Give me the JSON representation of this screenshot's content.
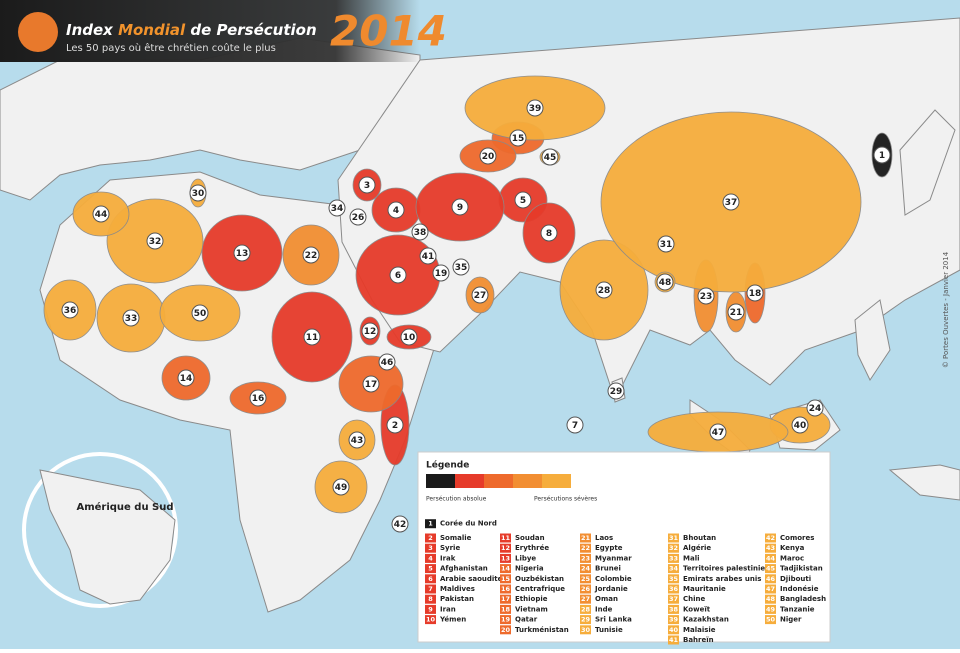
{
  "header": {
    "title": [
      "Index ",
      "Mondial",
      " de Persécution"
    ],
    "subtitle": "Les 50 pays où être chrétien coûte le plus",
    "year": "2014"
  },
  "credit": "© Portes Ouvertes - Janvier 2014",
  "inset": {
    "label": "Amérique du Sud"
  },
  "legend": {
    "title": "Légende",
    "colors": [
      "#1a1a1a",
      "#e63b2a",
      "#ee6a2c",
      "#f28e32",
      "#f6ad3c"
    ],
    "labels": [
      "Persécution absolue",
      "Persécutions sévères"
    ]
  },
  "countries": [
    {
      "rank": 1,
      "name": "Corée du Nord",
      "color": "#1a1a1a"
    },
    {
      "rank": 2,
      "name": "Somalie",
      "color": "#e63b2a"
    },
    {
      "rank": 3,
      "name": "Syrie",
      "color": "#e63b2a"
    },
    {
      "rank": 4,
      "name": "Irak",
      "color": "#e63b2a"
    },
    {
      "rank": 5,
      "name": "Afghanistan",
      "color": "#e63b2a"
    },
    {
      "rank": 6,
      "name": "Arabie saoudite",
      "color": "#e63b2a"
    },
    {
      "rank": 7,
      "name": "Maldives",
      "color": "#e63b2a"
    },
    {
      "rank": 8,
      "name": "Pakistan",
      "color": "#e63b2a"
    },
    {
      "rank": 9,
      "name": "Iran",
      "color": "#e63b2a"
    },
    {
      "rank": 10,
      "name": "Yémen",
      "color": "#e63b2a"
    },
    {
      "rank": 11,
      "name": "Soudan",
      "color": "#e63b2a"
    },
    {
      "rank": 12,
      "name": "Erythrée",
      "color": "#e63b2a"
    },
    {
      "rank": 13,
      "name": "Libye",
      "color": "#e63b2a"
    },
    {
      "rank": 14,
      "name": "Nigeria",
      "color": "#ee6a2c"
    },
    {
      "rank": 15,
      "name": "Ouzbékistan",
      "color": "#ee6a2c"
    },
    {
      "rank": 16,
      "name": "Centrafrique",
      "color": "#ee6a2c"
    },
    {
      "rank": 17,
      "name": "Ethiopie",
      "color": "#ee6a2c"
    },
    {
      "rank": 18,
      "name": "Vietnam",
      "color": "#ee6a2c"
    },
    {
      "rank": 19,
      "name": "Qatar",
      "color": "#ee6a2c"
    },
    {
      "rank": 20,
      "name": "Turkménistan",
      "color": "#ee6a2c"
    },
    {
      "rank": 21,
      "name": "Laos",
      "color": "#f28e32"
    },
    {
      "rank": 22,
      "name": "Egypte",
      "color": "#f28e32"
    },
    {
      "rank": 23,
      "name": "Myanmar",
      "color": "#f28e32"
    },
    {
      "rank": 24,
      "name": "Brunei",
      "color": "#f28e32"
    },
    {
      "rank": 25,
      "name": "Colombie",
      "color": "#f28e32"
    },
    {
      "rank": 26,
      "name": "Jordanie",
      "color": "#f28e32"
    },
    {
      "rank": 27,
      "name": "Oman",
      "color": "#f28e32"
    },
    {
      "rank": 28,
      "name": "Inde",
      "color": "#f6ad3c"
    },
    {
      "rank": 29,
      "name": "Sri Lanka",
      "color": "#f6ad3c"
    },
    {
      "rank": 30,
      "name": "Tunisie",
      "color": "#f6ad3c"
    },
    {
      "rank": 31,
      "name": "Bhoutan",
      "color": "#f6ad3c"
    },
    {
      "rank": 32,
      "name": "Algérie",
      "color": "#f6ad3c"
    },
    {
      "rank": 33,
      "name": "Mali",
      "color": "#f6ad3c"
    },
    {
      "rank": 34,
      "name": "Territoires palestiniens",
      "color": "#f6ad3c"
    },
    {
      "rank": 35,
      "name": "Emirats arabes unis",
      "color": "#f6ad3c"
    },
    {
      "rank": 36,
      "name": "Mauritanie",
      "color": "#f6ad3c"
    },
    {
      "rank": 37,
      "name": "Chine",
      "color": "#f6ad3c"
    },
    {
      "rank": 38,
      "name": "Koweït",
      "color": "#f6ad3c"
    },
    {
      "rank": 39,
      "name": "Kazakhstan",
      "color": "#f6ad3c"
    },
    {
      "rank": 40,
      "name": "Malaisie",
      "color": "#f6ad3c"
    },
    {
      "rank": 41,
      "name": "Bahreïn",
      "color": "#f6ad3c"
    },
    {
      "rank": 42,
      "name": "Comores",
      "color": "#f6ad3c"
    },
    {
      "rank": 43,
      "name": "Kenya",
      "color": "#f6ad3c"
    },
    {
      "rank": 44,
      "name": "Maroc",
      "color": "#f6ad3c"
    },
    {
      "rank": 45,
      "name": "Tadjikistan",
      "color": "#f6ad3c"
    },
    {
      "rank": 46,
      "name": "Djibouti",
      "color": "#f6ad3c"
    },
    {
      "rank": 47,
      "name": "Indonésie",
      "color": "#f6ad3c"
    },
    {
      "rank": 48,
      "name": "Bangladesh",
      "color": "#f6ad3c"
    },
    {
      "rank": 49,
      "name": "Tanzanie",
      "color": "#f6ad3c"
    },
    {
      "rank": 50,
      "name": "Niger",
      "color": "#f6ad3c"
    }
  ]
}
